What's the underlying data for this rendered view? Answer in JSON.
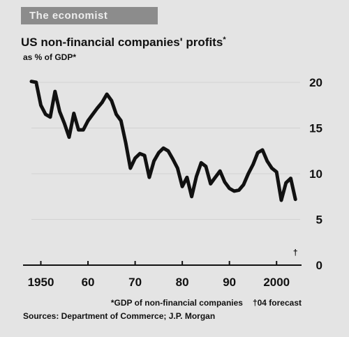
{
  "header": {
    "label": "The economist"
  },
  "chart_data": {
    "type": "line",
    "title": "US non-financial companies' profits",
    "title_marker": "*",
    "subtitle": "as % of GDP*",
    "x_tick_labels": [
      "1950",
      "60",
      "70",
      "80",
      "90",
      "2000"
    ],
    "x_ticks": [
      1950,
      1960,
      1970,
      1980,
      1990,
      2000
    ],
    "y_ticks": [
      0,
      5,
      10,
      15,
      20
    ],
    "xlim": [
      1948,
      2005
    ],
    "ylim": [
      0,
      20
    ],
    "forecast_marker": "†",
    "forecast_year": 2004,
    "series": [
      {
        "x": [
          1948,
          1949,
          1950,
          1951,
          1952,
          1953,
          1954,
          1955,
          1956,
          1957,
          1958,
          1959,
          1960,
          1961,
          1962,
          1963,
          1964,
          1965,
          1966,
          1967,
          1968,
          1969,
          1970,
          1971,
          1972,
          1973,
          1974,
          1975,
          1976,
          1977,
          1978,
          1979,
          1980,
          1981,
          1982,
          1983,
          1984,
          1985,
          1986,
          1987,
          1988,
          1989,
          1990,
          1991,
          1992,
          1993,
          1994,
          1995,
          1996,
          1997,
          1998,
          1999,
          2000,
          2001,
          2002,
          2003,
          2004
        ],
        "y": [
          20.1,
          20.0,
          17.5,
          16.5,
          16.2,
          19.0,
          16.8,
          15.5,
          14.0,
          16.6,
          14.8,
          14.8,
          15.8,
          16.5,
          17.2,
          17.8,
          18.7,
          18.0,
          16.5,
          15.8,
          13.4,
          10.6,
          11.7,
          12.2,
          12.0,
          9.6,
          11.4,
          12.3,
          12.8,
          12.5,
          11.6,
          10.6,
          8.6,
          9.6,
          7.5,
          9.7,
          11.2,
          10.8,
          8.9,
          9.6,
          10.3,
          9.1,
          8.4,
          8.1,
          8.2,
          8.8,
          10.0,
          11.0,
          12.3,
          12.6,
          11.4,
          10.6,
          10.2,
          7.1,
          9.0,
          9.5,
          7.2
        ]
      }
    ],
    "footnotes": {
      "gdp_note": "*GDP of non-financial companies",
      "forecast_note": "†04 forecast"
    },
    "source": "Sources: Department of Commerce; J.P. Morgan"
  }
}
